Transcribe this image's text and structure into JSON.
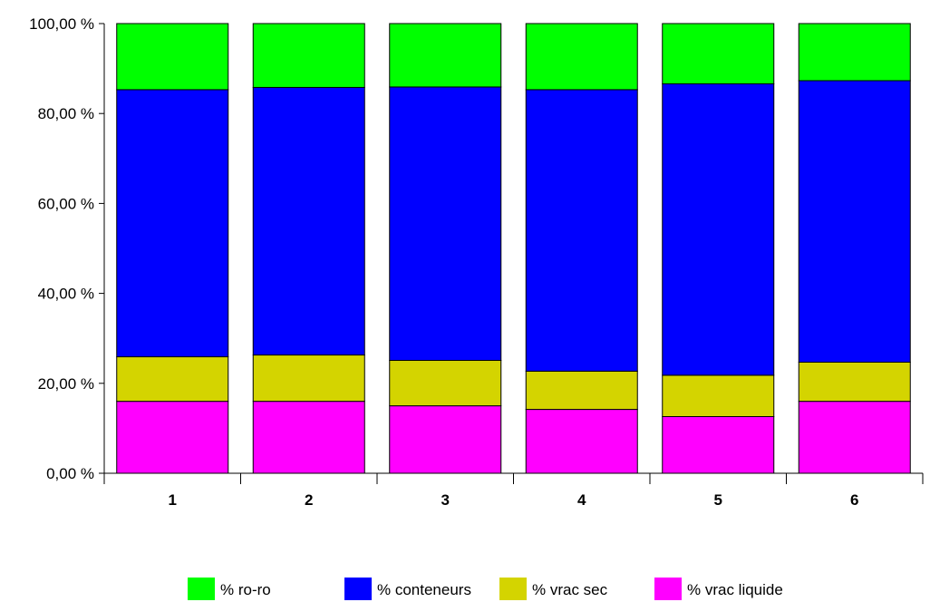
{
  "chart_data": {
    "type": "bar",
    "stacked": true,
    "categories": [
      "1",
      "2",
      "3",
      "4",
      "5",
      "6"
    ],
    "series": [
      {
        "name": "% vrac liquide",
        "color": "#ff00ff",
        "values": [
          16.0,
          16.0,
          15.0,
          14.2,
          12.6,
          16.0
        ]
      },
      {
        "name": "% vrac sec",
        "color": "#d4d400",
        "values": [
          9.9,
          10.3,
          10.1,
          8.5,
          9.2,
          8.7
        ]
      },
      {
        "name": "% conteneurs",
        "color": "#0000ff",
        "values": [
          59.4,
          59.5,
          60.8,
          62.6,
          64.8,
          62.6
        ]
      },
      {
        "name": "% ro-ro",
        "color": "#00ff00",
        "values": [
          14.7,
          14.2,
          14.1,
          14.7,
          13.4,
          12.7
        ]
      }
    ],
    "legend_order": [
      "% ro-ro",
      "% conteneurs",
      "% vrac sec",
      "% vrac liquide"
    ],
    "ylim": [
      0,
      100
    ],
    "yticks": [
      "0,00 %",
      "20,00 %",
      "40,00 %",
      "60,00 %",
      "80,00 %",
      "100,00 %"
    ],
    "ytick_values": [
      0,
      20,
      40,
      60,
      80,
      100
    ],
    "grid": false,
    "legend_position": "bottom"
  }
}
